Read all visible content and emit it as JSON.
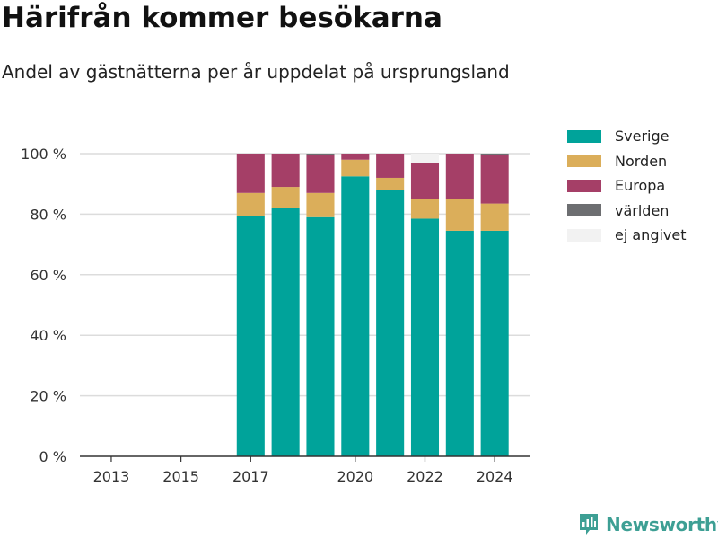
{
  "header": {
    "title": "Härifrån kommer besökarna",
    "subtitle": "Andel av gästnätterna per år uppdelat på ursprungsland"
  },
  "brand": {
    "name": "Newsworthy",
    "icon": "newsworthy-logo-icon"
  },
  "chart_data": {
    "type": "bar",
    "stacked": true,
    "title": "Härifrån kommer besökarna",
    "subtitle": "Andel av gästnätterna per år uppdelat på ursprungsland",
    "xlabel": "",
    "ylabel": "",
    "ylim": [
      0,
      100
    ],
    "x_range": [
      2012.1,
      2025.0
    ],
    "x_ticks": [
      2013,
      2015,
      2017,
      2020,
      2022,
      2024
    ],
    "y_ticks": [
      0,
      20,
      40,
      60,
      80,
      100
    ],
    "y_tick_labels": [
      "0 %",
      "20 %",
      "40 %",
      "60 %",
      "80 %",
      "100 %"
    ],
    "grid": true,
    "legend_position": "right",
    "categories": [
      2017,
      2018,
      2019,
      2020,
      2021,
      2022,
      2023,
      2024
    ],
    "series": [
      {
        "name": "Sverige",
        "color": "#00a39a",
        "values": [
          79.5,
          82,
          79,
          92.5,
          88,
          78.5,
          74.5,
          74.5
        ]
      },
      {
        "name": "Norden",
        "color": "#dbae5a",
        "values": [
          7.5,
          7,
          8,
          5.5,
          4,
          6.5,
          10.5,
          9
        ]
      },
      {
        "name": "Europa",
        "color": "#a53f67",
        "values": [
          13,
          11,
          12.5,
          2,
          8,
          12,
          15,
          16
        ]
      },
      {
        "name": "världen",
        "color": "#6d6e71",
        "values": [
          0,
          0,
          0.5,
          0,
          0,
          0,
          0,
          0.5
        ]
      },
      {
        "name": "ej angivet",
        "color": "#f2f2f2",
        "values": [
          0,
          0,
          0,
          0,
          0,
          3,
          0,
          0
        ]
      }
    ]
  }
}
